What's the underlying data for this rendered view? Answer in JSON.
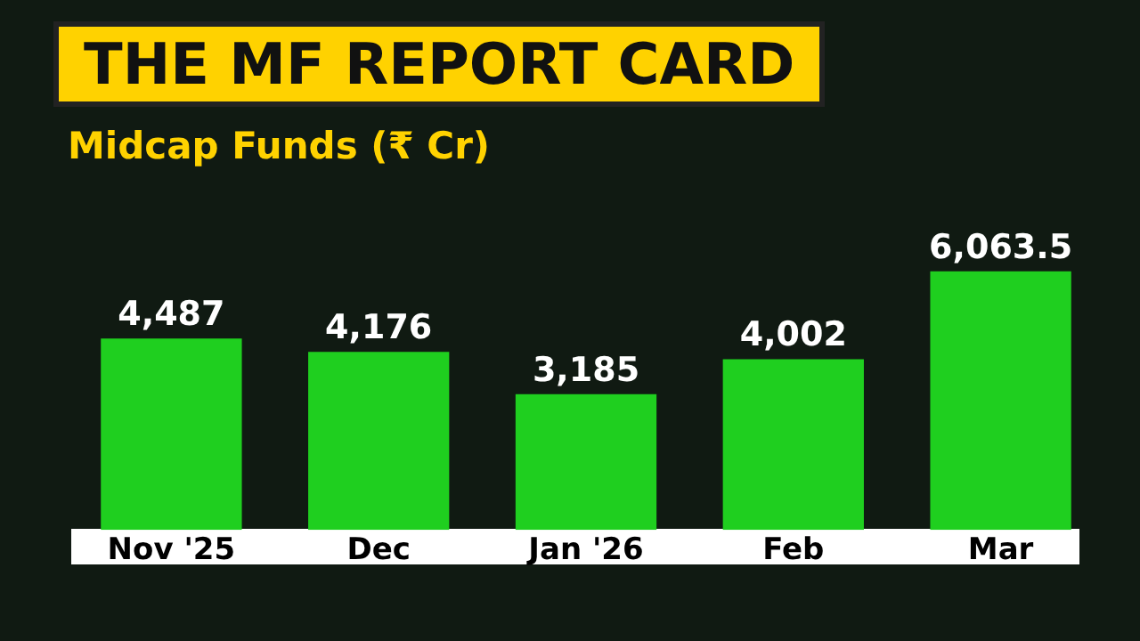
{
  "chart_data": {
    "type": "bar",
    "title": "THE MF REPORT CARD",
    "subtitle": "Midcap Funds (₹ Cr)",
    "categories": [
      "Nov '25",
      "Dec",
      "Jan '26",
      "Feb",
      "Mar"
    ],
    "values": [
      4487,
      4176,
      3185,
      4002,
      6063.5
    ],
    "value_labels": [
      "4,487",
      "4,176",
      "3,185",
      "4,002",
      "6,063.5"
    ],
    "color": "#1fcf1f",
    "relative": false,
    "grid": false,
    "legend": false
  }
}
